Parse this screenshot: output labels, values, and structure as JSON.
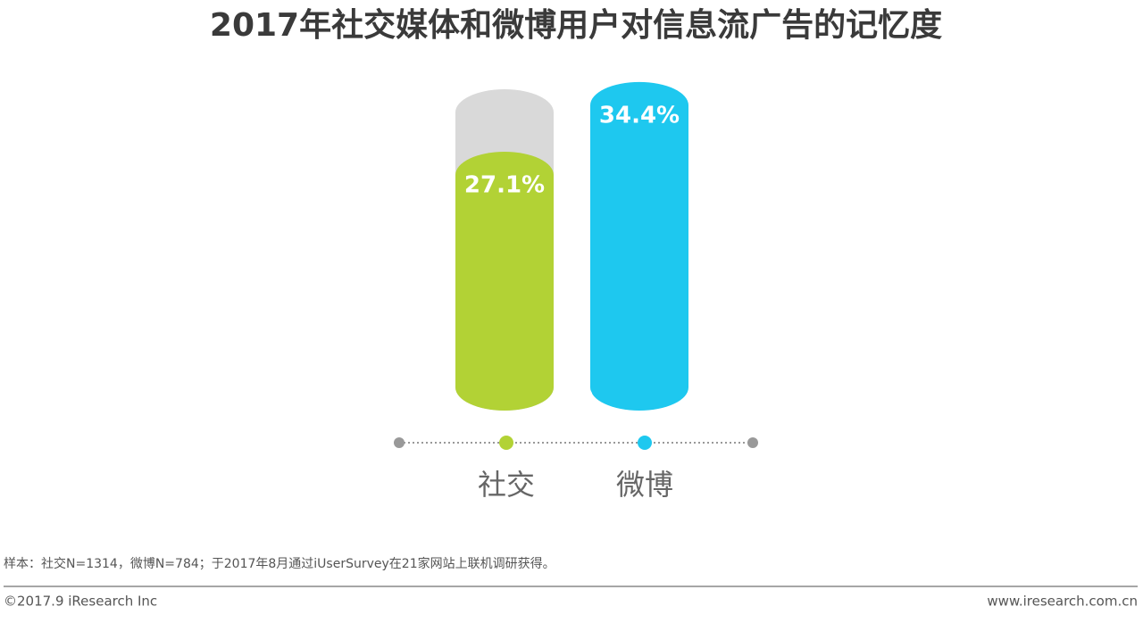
{
  "chart_data": {
    "type": "bar",
    "title": "2017年社交媒体和微博用户对信息流广告的记忆度",
    "categories": [
      "社交",
      "微博"
    ],
    "values": [
      27.1,
      34.4
    ],
    "value_labels": [
      "27.1%",
      "34.4%"
    ],
    "colors": [
      "#b2d235",
      "#1ec8ef"
    ],
    "note": "样本：社交N=1314，微博N=784；于2017年8月通过iUserSurvey在21家网站上联机调研获得。",
    "copyright": "©2017.9 iResearch Inc",
    "website": "www.iresearch.com.cn"
  }
}
